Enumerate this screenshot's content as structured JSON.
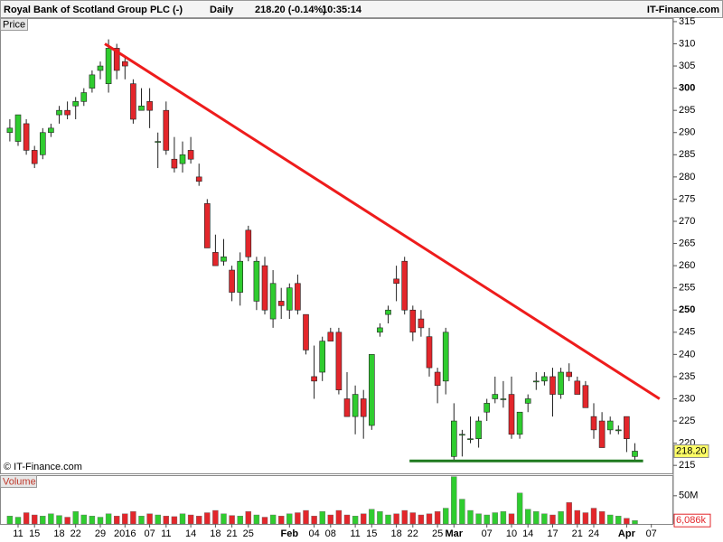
{
  "chart_data": {
    "type": "candlestick",
    "title": "Royal Bank of Scotland Group PLC (-)",
    "interval": "Daily",
    "quote": "218.20 (-0.14%)",
    "time": "10:35:14",
    "source": "IT-Finance.com",
    "watermark": "© IT-Finance.com",
    "pane_label": "Price",
    "up_color": "#2fcc2f",
    "down_color": "#e3262b",
    "categories": [
      null,
      "11",
      null,
      "15",
      null,
      null,
      "18",
      null,
      "22",
      null,
      null,
      "29",
      null,
      null,
      "2016",
      null,
      null,
      "07",
      null,
      "11",
      null,
      null,
      "14",
      null,
      null,
      "18",
      null,
      "21",
      null,
      "25",
      null,
      null,
      null,
      null,
      "Feb",
      null,
      null,
      "04",
      null,
      "08",
      null,
      null,
      "11",
      null,
      "15",
      null,
      null,
      "18",
      null,
      "22",
      null,
      null,
      "25",
      null,
      "Mar",
      null,
      null,
      null,
      "07",
      null,
      null,
      "10",
      null,
      "14",
      null,
      null,
      "17",
      null,
      null,
      "21",
      null,
      "24",
      null,
      null,
      null,
      "Apr",
      null,
      null,
      "07",
      null
    ],
    "open": [
      290,
      288,
      292,
      286,
      285,
      290,
      294,
      295,
      296,
      297,
      300,
      304,
      301,
      309,
      306,
      301,
      295,
      297,
      288,
      295,
      284,
      283,
      286,
      280,
      274,
      263,
      261,
      259,
      254,
      268,
      252,
      260,
      248,
      252,
      250,
      256,
      249,
      235,
      236,
      245,
      245,
      230,
      226,
      230,
      224,
      245,
      249,
      257,
      261,
      250,
      248,
      244,
      236,
      234,
      217,
      222,
      221,
      221,
      227,
      230,
      230,
      231,
      222,
      229,
      234,
      234,
      235,
      231,
      236,
      234,
      233,
      226,
      225,
      223,
      223,
      226,
      217,
      null,
      null,
      null
    ],
    "high": [
      293,
      294,
      293,
      287,
      291,
      292,
      296,
      297,
      298,
      300,
      304,
      306,
      311,
      310,
      307,
      302,
      300,
      300,
      290,
      297,
      289,
      288,
      289,
      283,
      275,
      267,
      266,
      260,
      263,
      269,
      262,
      262,
      259,
      255,
      256,
      258,
      249,
      242,
      244,
      246,
      246,
      236,
      233,
      232,
      240,
      247,
      251,
      260,
      262,
      251,
      250,
      246,
      237,
      246,
      229,
      223,
      226,
      226,
      230,
      235,
      234,
      235,
      227,
      231,
      236,
      236,
      237,
      237,
      238,
      235,
      234,
      229,
      227,
      226,
      224,
      226,
      220,
      null,
      null,
      null
    ],
    "low": [
      288,
      287,
      285,
      282,
      284,
      289,
      292,
      293,
      293,
      296,
      299,
      302,
      299,
      302,
      302,
      292,
      295,
      291,
      282,
      285,
      281,
      281,
      283,
      278,
      264,
      260,
      260,
      252,
      251,
      261,
      250,
      249,
      246,
      248,
      248,
      249,
      240,
      230,
      234,
      243,
      231,
      226,
      222,
      221,
      223,
      244,
      247,
      252,
      249,
      243,
      244,
      235,
      229,
      231,
      216,
      217,
      220,
      219,
      225,
      229,
      228,
      221,
      221,
      227,
      232,
      233,
      226,
      230,
      234,
      231,
      228,
      221,
      219,
      222,
      222,
      218,
      216,
      null,
      null,
      null
    ],
    "close": [
      291,
      294,
      286,
      283,
      290,
      291,
      295,
      294,
      297,
      299,
      303,
      305,
      309,
      304,
      305,
      293,
      296,
      295,
      288,
      286,
      282,
      285,
      284,
      279,
      264,
      260,
      262,
      254,
      261,
      262,
      261,
      250,
      256,
      251,
      255,
      250,
      241,
      234,
      243,
      243,
      232,
      226,
      231,
      226,
      240,
      246,
      250,
      256,
      250,
      245,
      246,
      237,
      233,
      245,
      225,
      222,
      221,
      225,
      229,
      231,
      230,
      222,
      227,
      230,
      234,
      235,
      231,
      236,
      235,
      231,
      228,
      223,
      219,
      225,
      223,
      221,
      218.2,
      null,
      null,
      null
    ],
    "ylim": [
      213,
      315.8
    ],
    "yticks": [
      215,
      220,
      225,
      230,
      235,
      240,
      245,
      250,
      255,
      260,
      265,
      270,
      275,
      280,
      285,
      290,
      295,
      300,
      305,
      310,
      315
    ],
    "bold_ticks": [
      250,
      300
    ],
    "last": {
      "value": 218.2,
      "label": "218.20"
    },
    "last_color": "#ffff66",
    "trendlines": [
      {
        "color": "#ee1c1c",
        "x": [
          11.55,
          79.0
        ],
        "y": [
          310,
          230
        ]
      },
      {
        "color": "#1f7a1f",
        "x": [
          48.6,
          77.0
        ],
        "y": [
          216,
          216
        ]
      }
    ],
    "volume": {
      "label": "Volume",
      "values": [
        14000000,
        12000000,
        20000000,
        16000000,
        14000000,
        18000000,
        15000000,
        12000000,
        22000000,
        16000000,
        14000000,
        12000000,
        18000000,
        14000000,
        18000000,
        22000000,
        14000000,
        18000000,
        16000000,
        14000000,
        13000000,
        18000000,
        16000000,
        14000000,
        20000000,
        24000000,
        18000000,
        15000000,
        14000000,
        22000000,
        16000000,
        12000000,
        16000000,
        14000000,
        18000000,
        20000000,
        24000000,
        14000000,
        22000000,
        16000000,
        24000000,
        16000000,
        14000000,
        18000000,
        26000000,
        22000000,
        16000000,
        18000000,
        24000000,
        20000000,
        16000000,
        18000000,
        22000000,
        28000000,
        84000000,
        44000000,
        24000000,
        18000000,
        16000000,
        20000000,
        22000000,
        18000000,
        55000000,
        26000000,
        22000000,
        18000000,
        16000000,
        22000000,
        38000000,
        24000000,
        20000000,
        28000000,
        22000000,
        16000000,
        14000000,
        10000000,
        6086000,
        null,
        null,
        null
      ],
      "ylim": [
        0,
        85000000
      ],
      "yticks": [
        {
          "value": 50000000,
          "label": "50M"
        }
      ],
      "last": {
        "value": 6086000,
        "label": "6,086k"
      }
    }
  }
}
